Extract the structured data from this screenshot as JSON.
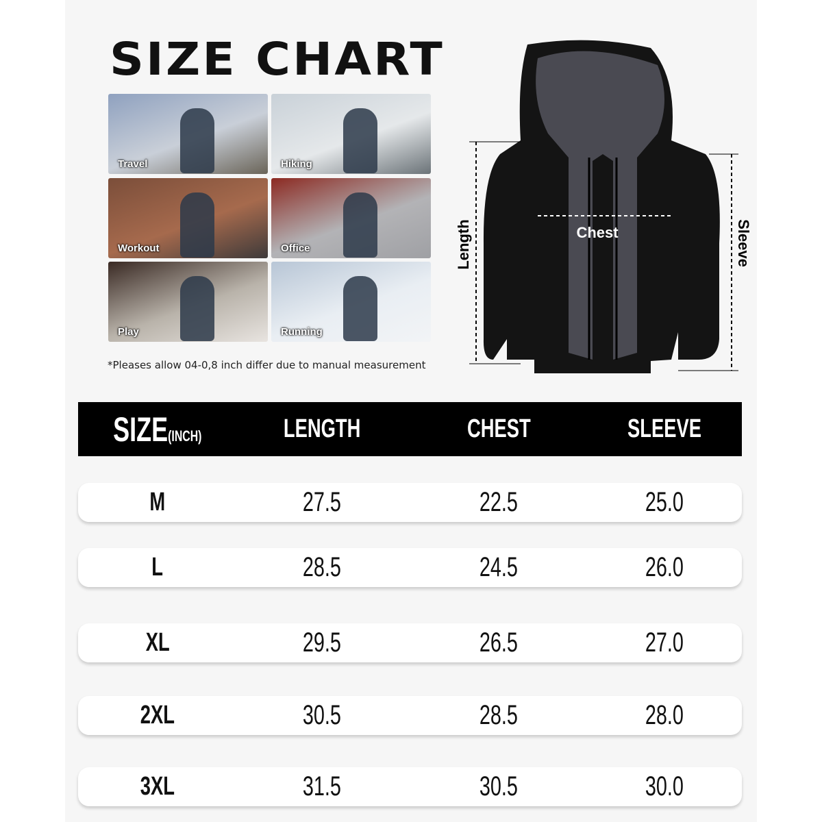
{
  "title": "SIZE CHART",
  "photos": [
    {
      "label": "Travel",
      "colors": [
        "#8fa1bf",
        "#c9cfd8",
        "#6a6458"
      ]
    },
    {
      "label": "Hiking",
      "colors": [
        "#c9d1d8",
        "#e5e8ea",
        "#6b7378"
      ]
    },
    {
      "label": "Workout",
      "colors": [
        "#7b4e3a",
        "#a66a4d",
        "#3e3a3a"
      ]
    },
    {
      "label": "Office",
      "colors": [
        "#8c2a22",
        "#b3b3b6",
        "#9fa0a4"
      ]
    },
    {
      "label": "Play",
      "colors": [
        "#3a2a24",
        "#b9b3aa",
        "#e8e4e0"
      ]
    },
    {
      "label": "Running",
      "colors": [
        "#b8c6d6",
        "#e9eef3",
        "#f2f4f6"
      ]
    }
  ],
  "note": "*Pleases allow 04-0,8 inch differ due to manual measurement",
  "diagram": {
    "chest": "Chest",
    "length": "Length",
    "sleeve": "Sleeve"
  },
  "table": {
    "headers": {
      "size": "SIZE",
      "unit": "(INCH)",
      "length": "LENGTH",
      "chest": "CHEST",
      "sleeve": "SLEEVE"
    },
    "rows": [
      {
        "size": "M",
        "length": "27.5",
        "chest": "22.5",
        "sleeve": "25.0"
      },
      {
        "size": "L",
        "length": "28.5",
        "chest": "24.5",
        "sleeve": "26.0"
      },
      {
        "size": "XL",
        "length": "29.5",
        "chest": "26.5",
        "sleeve": "27.0"
      },
      {
        "size": "2XL",
        "length": "30.5",
        "chest": "28.5",
        "sleeve": "28.0"
      },
      {
        "size": "3XL",
        "length": "31.5",
        "chest": "30.5",
        "sleeve": "30.0"
      }
    ]
  }
}
